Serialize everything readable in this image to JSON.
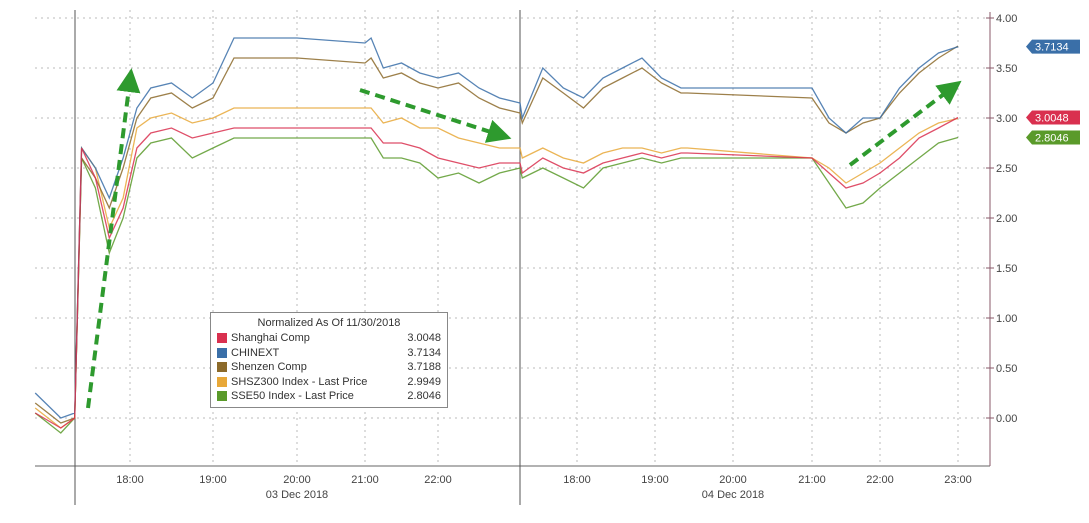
{
  "chart_data": {
    "type": "line",
    "title": "",
    "xlabel": "",
    "ylabel": "",
    "ylim": [
      -0.5,
      4.0
    ],
    "y_axis_side": "right",
    "y_ticks": [
      "4.00",
      "3.50",
      "3.00",
      "2.50",
      "2.00",
      "1.50",
      "1.00",
      "0.50",
      "0.00"
    ],
    "grid": true,
    "legend_placement": "bottom-left",
    "x_groups": [
      {
        "date_label": "03 Dec 2018",
        "tick_labels": [
          "18:00",
          "19:00",
          "20:00",
          "21:00",
          "22:00"
        ]
      },
      {
        "date_label": "04 Dec 2018",
        "tick_labels": [
          "18:00",
          "19:00",
          "20:00",
          "21:00",
          "22:00",
          "23:00"
        ]
      }
    ],
    "legend_title": "Normalized As Of 11/30/2018",
    "x": [
      "03 Dec 16:50",
      "03 Dec 17:10",
      "03 Dec 17:20",
      "03 Dec 17:25",
      "03 Dec 17:35",
      "03 Dec 17:45",
      "03 Dec 17:55",
      "03 Dec 18:05",
      "03 Dec 18:15",
      "03 Dec 18:30",
      "03 Dec 18:45",
      "03 Dec 19:00",
      "03 Dec 19:15",
      "03 Dec 20:00",
      "03 Dec 21:00",
      "03 Dec 21:05",
      "03 Dec 21:15",
      "03 Dec 21:30",
      "03 Dec 21:45",
      "03 Dec 22:00",
      "03 Dec 22:15",
      "03 Dec 22:30",
      "03 Dec 22:45",
      "03 Dec 23:00",
      "04 Dec 17:20",
      "04 Dec 17:35",
      "04 Dec 17:50",
      "04 Dec 18:05",
      "04 Dec 18:20",
      "04 Dec 18:35",
      "04 Dec 18:50",
      "04 Dec 19:05",
      "04 Dec 19:20",
      "04 Dec 19:25",
      "04 Dec 21:00",
      "04 Dec 21:15",
      "04 Dec 21:30",
      "04 Dec 21:45",
      "04 Dec 22:00",
      "04 Dec 22:15",
      "04 Dec 22:30",
      "04 Dec 22:45",
      "04 Dec 23:00"
    ],
    "series": [
      {
        "name": "Shanghai Comp",
        "last": "3.0048",
        "color": "#d9304f",
        "tag": true,
        "values": [
          0.05,
          -0.1,
          0.0,
          2.7,
          2.4,
          1.8,
          2.1,
          2.7,
          2.85,
          2.9,
          2.8,
          2.85,
          2.9,
          2.9,
          2.9,
          2.9,
          2.75,
          2.75,
          2.7,
          2.6,
          2.55,
          2.5,
          2.55,
          2.55,
          2.45,
          2.6,
          2.5,
          2.45,
          2.55,
          2.6,
          2.65,
          2.6,
          2.65,
          2.65,
          2.6,
          2.45,
          2.3,
          2.35,
          2.45,
          2.6,
          2.8,
          2.9,
          3.0048
        ]
      },
      {
        "name": "CHINEXT",
        "last": "3.7134",
        "color": "#3a6fa8",
        "tag": true,
        "values": [
          0.25,
          0.0,
          0.05,
          2.7,
          2.5,
          2.2,
          2.6,
          3.1,
          3.3,
          3.35,
          3.2,
          3.35,
          3.8,
          3.8,
          3.75,
          3.8,
          3.5,
          3.55,
          3.45,
          3.4,
          3.45,
          3.3,
          3.2,
          3.15,
          3.0,
          3.5,
          3.3,
          3.2,
          3.4,
          3.5,
          3.6,
          3.4,
          3.3,
          3.3,
          3.3,
          3.0,
          2.85,
          3.0,
          3.0,
          3.3,
          3.5,
          3.65,
          3.7134
        ]
      },
      {
        "name": "Shenzen Comp",
        "last": "3.7188",
        "color": "#8c6a2a",
        "tag": false,
        "values": [
          0.15,
          -0.05,
          0.0,
          2.6,
          2.4,
          2.1,
          2.5,
          3.0,
          3.2,
          3.25,
          3.1,
          3.2,
          3.6,
          3.6,
          3.55,
          3.6,
          3.4,
          3.45,
          3.35,
          3.3,
          3.35,
          3.2,
          3.1,
          3.05,
          2.95,
          3.4,
          3.25,
          3.1,
          3.3,
          3.4,
          3.5,
          3.35,
          3.25,
          3.25,
          3.2,
          2.95,
          2.85,
          2.95,
          3.0,
          3.25,
          3.45,
          3.6,
          3.72
        ]
      },
      {
        "name": "SHSZ300 Index - Last Price",
        "last": "2.9949",
        "color": "#e8a838",
        "tag": false,
        "values": [
          0.1,
          -0.1,
          0.0,
          2.7,
          2.5,
          1.9,
          2.2,
          2.9,
          3.0,
          3.05,
          2.95,
          3.0,
          3.1,
          3.1,
          3.1,
          3.1,
          2.95,
          3.0,
          2.9,
          2.9,
          2.8,
          2.75,
          2.7,
          2.7,
          2.6,
          2.7,
          2.6,
          2.55,
          2.65,
          2.7,
          2.7,
          2.65,
          2.7,
          2.7,
          2.6,
          2.5,
          2.35,
          2.45,
          2.55,
          2.7,
          2.85,
          2.95,
          2.9949
        ]
      },
      {
        "name": "SSE50 Index - Last Price",
        "last": "2.8046",
        "color": "#5a9a2a",
        "tag": true,
        "values": [
          0.05,
          -0.15,
          0.0,
          2.6,
          2.3,
          1.65,
          2.0,
          2.6,
          2.75,
          2.8,
          2.6,
          2.7,
          2.8,
          2.8,
          2.8,
          2.8,
          2.6,
          2.6,
          2.55,
          2.4,
          2.45,
          2.35,
          2.45,
          2.5,
          2.4,
          2.5,
          2.4,
          2.3,
          2.5,
          2.55,
          2.6,
          2.55,
          2.6,
          2.6,
          2.6,
          2.35,
          2.1,
          2.15,
          2.3,
          2.45,
          2.6,
          2.75,
          2.8046
        ]
      }
    ],
    "annotations": [
      {
        "type": "arrow",
        "style": "dashed",
        "color": "#2e9a2e",
        "direction": "up"
      },
      {
        "type": "arrow",
        "style": "dashed",
        "color": "#2e9a2e",
        "direction": "down-right"
      },
      {
        "type": "arrow",
        "style": "dashed",
        "color": "#2e9a2e",
        "direction": "up-right"
      }
    ]
  }
}
